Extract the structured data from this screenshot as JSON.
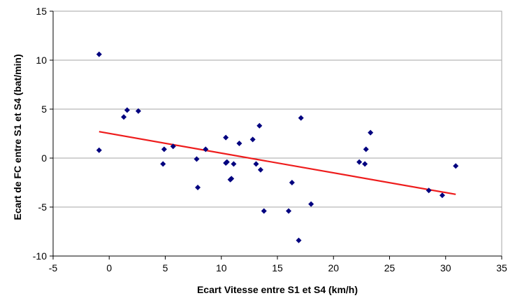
{
  "chart_data": {
    "type": "scatter",
    "xlabel": "Ecart Vitesse entre S1 et S4 (km/h)",
    "ylabel": "Ecart de FC entre S1 et S4 (bat/min)",
    "xlim": [
      -5,
      35
    ],
    "ylim": [
      -10,
      15
    ],
    "x_ticks": [
      -5,
      0,
      5,
      10,
      15,
      20,
      25,
      30,
      35
    ],
    "y_ticks": [
      -10,
      -5,
      0,
      5,
      10,
      15
    ],
    "grid": "horizontal",
    "legend": "none",
    "points": {
      "x": [
        -0.9,
        -0.9,
        1.3,
        1.6,
        2.6,
        4.8,
        4.9,
        5.7,
        7.8,
        7.9,
        8.6,
        10.4,
        10.4,
        10.5,
        10.8,
        10.9,
        11.1,
        11.6,
        12.8,
        13.1,
        13.4,
        13.5,
        13.8,
        16.0,
        16.3,
        16.9,
        17.1,
        18.0,
        22.3,
        22.8,
        22.9,
        23.3,
        28.5,
        29.7,
        30.9
      ],
      "y": [
        10.6,
        0.8,
        4.2,
        4.9,
        4.8,
        -0.6,
        0.9,
        1.2,
        -0.1,
        -3.0,
        0.9,
        2.1,
        -0.5,
        -0.4,
        -2.2,
        -2.1,
        -0.6,
        1.5,
        1.9,
        -0.6,
        3.3,
        -1.2,
        -5.4,
        -5.4,
        -2.5,
        -8.4,
        4.1,
        -4.7,
        -0.4,
        -0.6,
        0.9,
        2.6,
        -3.3,
        -3.8,
        -0.8
      ],
      "color": "#00007f",
      "marker": "diamond"
    },
    "trendline": {
      "x": [
        -0.9,
        30.9
      ],
      "y": [
        2.7,
        -3.7
      ],
      "color": "#ee1c1c"
    }
  }
}
